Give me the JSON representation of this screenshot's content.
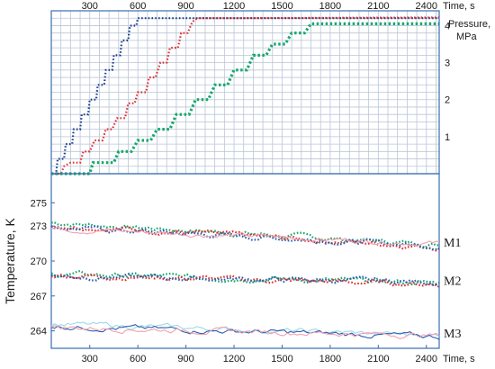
{
  "chart_data": [
    {
      "type": "line",
      "panel": "top",
      "xlabel": "Time, s",
      "ylabel": "Pressure, MPa",
      "xlim": [
        60,
        2480
      ],
      "ylim": [
        0,
        4.4
      ],
      "x_ticks": [
        "300",
        "600",
        "900",
        "1200",
        "1500",
        "1800",
        "2100",
        "2400"
      ],
      "y_ticks": [
        "1",
        "2",
        "3",
        "4"
      ],
      "grid": true,
      "series": [
        {
          "color": "#1f3f8f",
          "style": "dotted",
          "points": [
            [
              60,
              0
            ],
            [
              90,
              0
            ],
            [
              100,
              0.4
            ],
            [
              140,
              0.4
            ],
            [
              150,
              0.8
            ],
            [
              190,
              0.8
            ],
            [
              200,
              1.2
            ],
            [
              240,
              1.2
            ],
            [
              250,
              1.6
            ],
            [
              290,
              1.6
            ],
            [
              300,
              2.0
            ],
            [
              340,
              2.0
            ],
            [
              350,
              2.4
            ],
            [
              390,
              2.4
            ],
            [
              400,
              2.8
            ],
            [
              440,
              2.8
            ],
            [
              450,
              3.2
            ],
            [
              490,
              3.2
            ],
            [
              500,
              3.6
            ],
            [
              540,
              3.6
            ],
            [
              550,
              4.0
            ],
            [
              590,
              4.0
            ],
            [
              600,
              4.2
            ],
            [
              1200,
              4.2
            ],
            [
              2480,
              4.2
            ]
          ]
        },
        {
          "color": "#e23030",
          "style": "dotted",
          "points": [
            [
              60,
              0
            ],
            [
              120,
              0
            ],
            [
              140,
              0.2
            ],
            [
              180,
              0.3
            ],
            [
              240,
              0.3
            ],
            [
              260,
              0.6
            ],
            [
              300,
              0.6
            ],
            [
              330,
              0.9
            ],
            [
              380,
              0.9
            ],
            [
              400,
              1.2
            ],
            [
              440,
              1.2
            ],
            [
              470,
              1.5
            ],
            [
              520,
              1.5
            ],
            [
              540,
              1.9
            ],
            [
              580,
              1.9
            ],
            [
              600,
              2.2
            ],
            [
              650,
              2.2
            ],
            [
              670,
              2.6
            ],
            [
              710,
              2.6
            ],
            [
              740,
              3.0
            ],
            [
              780,
              3.0
            ],
            [
              800,
              3.4
            ],
            [
              850,
              3.4
            ],
            [
              870,
              3.8
            ],
            [
              910,
              3.8
            ],
            [
              940,
              4.1
            ],
            [
              970,
              4.2
            ],
            [
              1200,
              4.2
            ],
            [
              2480,
              4.22
            ]
          ]
        },
        {
          "color": "#17a86a",
          "style": "dotted-thick",
          "points": [
            [
              60,
              0
            ],
            [
              300,
              0
            ],
            [
              320,
              0.3
            ],
            [
              450,
              0.3
            ],
            [
              480,
              0.6
            ],
            [
              560,
              0.6
            ],
            [
              600,
              0.9
            ],
            [
              680,
              0.9
            ],
            [
              720,
              1.2
            ],
            [
              800,
              1.2
            ],
            [
              840,
              1.6
            ],
            [
              920,
              1.6
            ],
            [
              960,
              2.0
            ],
            [
              1040,
              2.0
            ],
            [
              1080,
              2.4
            ],
            [
              1160,
              2.4
            ],
            [
              1200,
              2.8
            ],
            [
              1280,
              2.8
            ],
            [
              1320,
              3.2
            ],
            [
              1400,
              3.2
            ],
            [
              1440,
              3.5
            ],
            [
              1520,
              3.5
            ],
            [
              1560,
              3.8
            ],
            [
              1640,
              3.8
            ],
            [
              1680,
              4.05
            ],
            [
              1800,
              4.05
            ],
            [
              1840,
              4.05
            ],
            [
              2480,
              4.05
            ]
          ]
        }
      ]
    },
    {
      "type": "line",
      "panel": "bottom",
      "xlabel": "Time, s",
      "ylabel": "Temperature, K",
      "xlim": [
        60,
        2480
      ],
      "ylim": [
        262.5,
        277.5
      ],
      "x_ticks": [
        "300",
        "600",
        "900",
        "1200",
        "1500",
        "1800",
        "2100",
        "2400"
      ],
      "y_ticks": [
        "264",
        "267",
        "270",
        "273",
        "275"
      ],
      "series_labels": [
        "M1",
        "M2",
        "M3"
      ],
      "groups": [
        {
          "label": "M1",
          "series": [
            {
              "color": "#17a86a",
              "style": "dotted",
              "start": 273.3,
              "end": 271.4
            },
            {
              "color": "#e23030",
              "style": "dotted",
              "start": 273.1,
              "end": 271.2
            },
            {
              "color": "#2d5fb0",
              "style": "dotted",
              "start": 272.9,
              "end": 271.3
            },
            {
              "color": "#f0a0b0",
              "style": "solid",
              "start": 272.8,
              "end": 271.5
            }
          ]
        },
        {
          "label": "M2",
          "series": [
            {
              "color": "#17a86a",
              "style": "dotted",
              "start": 268.9,
              "end": 268.1
            },
            {
              "color": "#e23030",
              "style": "dotted",
              "start": 268.8,
              "end": 268.0
            },
            {
              "color": "#2d5fb0",
              "style": "dotted",
              "start": 268.7,
              "end": 268.2
            }
          ]
        },
        {
          "label": "M3",
          "series": [
            {
              "color": "#9fd8e8",
              "style": "solid",
              "start": 264.6,
              "end": 263.6
            },
            {
              "color": "#2d5fb0",
              "style": "solid",
              "start": 264.4,
              "end": 263.5
            },
            {
              "color": "#f0a0b0",
              "style": "solid",
              "start": 264.3,
              "end": 263.6
            }
          ]
        }
      ]
    }
  ],
  "labels": {
    "top_time": "Time, s",
    "bottom_time": "Time, s",
    "pressure_line1": "Pressure,",
    "pressure_line2": "MPa",
    "temperature": "Temperature, K"
  }
}
